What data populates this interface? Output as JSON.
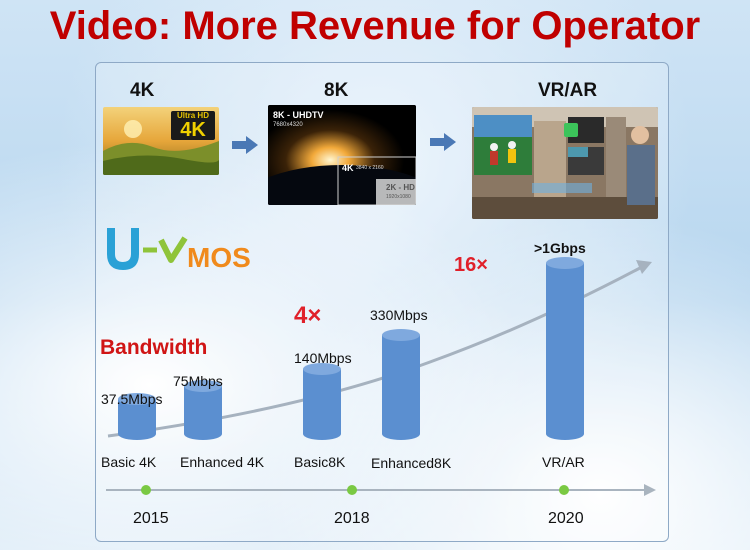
{
  "title": "Video: More Revenue for Operator",
  "stages": [
    {
      "label": "4K",
      "badge_top": "Ultra HD",
      "badge_main": "4K"
    },
    {
      "label": "8K",
      "pic_title": "8K - UHDTV",
      "pic_res": "7680x4320",
      "inner_4k": "4K",
      "inner_4k_res": "3840 x 2160",
      "inner_2k": "2K - HD",
      "inner_2k_res": "1920x1080"
    },
    {
      "label": "VR/AR"
    }
  ],
  "logo": {
    "text": "MOS"
  },
  "bandwidth_title": "Bandwidth",
  "multipliers": [
    "4×",
    "16×"
  ],
  "bars": [
    {
      "category": "Basic 4K",
      "value_label": "37.5Mbps",
      "mbps": 37.5
    },
    {
      "category": "Enhanced 4K",
      "value_label": "75Mbps",
      "mbps": 75
    },
    {
      "category": "Basic8K",
      "value_label": "140Mbps",
      "mbps": 140
    },
    {
      "category": "Enhanced8K",
      "value_label": "330Mbps",
      "mbps": 330
    },
    {
      "category": "VR/AR",
      "value_label": ">1Gbps",
      "mbps": 1000
    }
  ],
  "years": [
    "2015",
    "2018",
    "2020"
  ],
  "colors": {
    "title": "#c00000",
    "bar": "#5b8fd0",
    "timeline_dot": "#7ac943",
    "multiplier": "#e0202a"
  }
}
